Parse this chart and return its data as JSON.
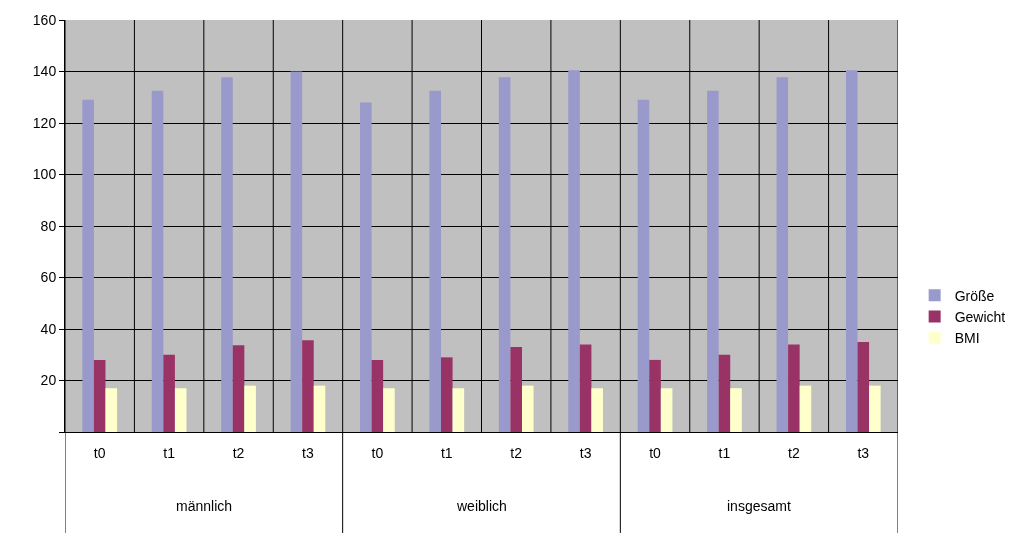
{
  "chart_data": {
    "type": "bar",
    "categories": [
      "t0",
      "t1",
      "t2",
      "t3",
      "t0",
      "t1",
      "t2",
      "t3",
      "t0",
      "t1",
      "t2",
      "t3"
    ],
    "series": [
      {
        "name": "Größe",
        "color": "#9999cc",
        "values": [
          129,
          132.5,
          137.8,
          140,
          128,
          132.5,
          137.8,
          140.5,
          129,
          132.5,
          137.8,
          140.5
        ]
      },
      {
        "name": "Gewicht",
        "color": "#993366",
        "values": [
          28,
          30,
          33.7,
          35.6,
          28,
          29,
          33,
          34,
          28,
          30,
          34,
          35
        ]
      },
      {
        "name": "BMI",
        "color": "#ffffcc",
        "values": [
          17,
          17,
          18,
          18,
          17,
          17,
          18,
          17,
          17,
          17,
          18,
          18
        ]
      }
    ],
    "annotations": [
      "männlich",
      "weiblich",
      "insgesamt"
    ],
    "ylim": [
      0,
      160
    ],
    "yticks": [
      {
        "value": 0,
        "label": null
      },
      20,
      40,
      60,
      80,
      100,
      120,
      140,
      160
    ],
    "grid": true,
    "legend": "right"
  }
}
